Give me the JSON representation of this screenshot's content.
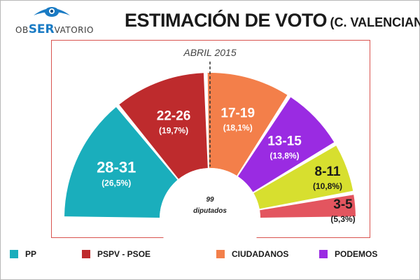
{
  "header": {
    "logo_left": "OB",
    "logo_mid": "SER",
    "logo_right": "VATORIO",
    "title_main": "ESTIMACIÓN DE VOTO",
    "title_sub": "(C. VALENCIANA"
  },
  "chart_data": {
    "type": "pie",
    "subtype": "hemicycle",
    "title": "ESTIMACIÓN DE VOTO (C. VALENCIANA",
    "subtitle": "ABRIL 2015",
    "center_value": "99",
    "center_label": "diputados",
    "parties": [
      {
        "name": "PP",
        "seats": "28-31",
        "percent": "(26,5%)",
        "share": 26.5,
        "color": "#1aaebc"
      },
      {
        "name": "PSPV - PSOE",
        "seats": "22-26",
        "percent": "(19,7%)",
        "share": 19.7,
        "color": "#be2b2d"
      },
      {
        "name": "CIUDADANOS",
        "seats": "17-19",
        "percent": "(18,1%)",
        "share": 18.1,
        "color": "#f37f4a"
      },
      {
        "name": "PODEMOS",
        "seats": "13-15",
        "percent": "(13,8%)",
        "share": 13.8,
        "color": "#9a2be2"
      },
      {
        "name": "",
        "seats": "8-11",
        "percent": "(10,8%)",
        "share": 10.8,
        "color": "#d7df2f"
      },
      {
        "name": "",
        "seats": "3-5",
        "percent": "(5,3%)",
        "share": 5.3,
        "color": "#e3555f"
      }
    ]
  },
  "legend": [
    {
      "label": "PP",
      "color": "#1aaebc"
    },
    {
      "label": "PSPV - PSOE",
      "color": "#be2b2d"
    },
    {
      "label": "CIUDADANOS",
      "color": "#f37f4a"
    },
    {
      "label": "PODEMOS",
      "color": "#9a2be2"
    }
  ]
}
